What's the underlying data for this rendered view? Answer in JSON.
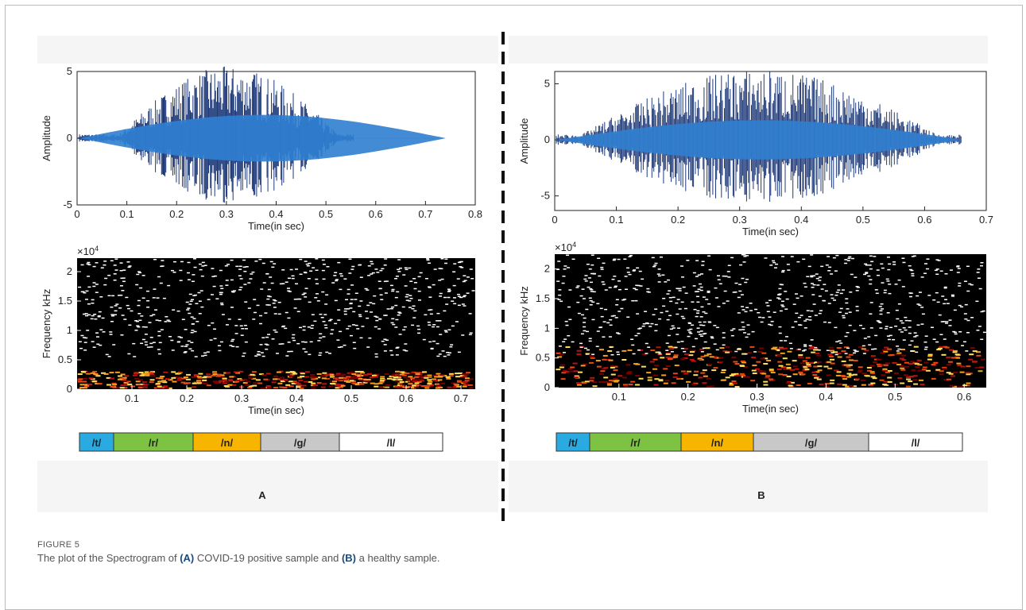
{
  "panels": [
    {
      "label": "A",
      "waveform": {
        "xlabel": "Time(in sec)",
        "ylabel": "Amplitude",
        "xlim": [
          0,
          0.8
        ],
        "xticks": [
          0,
          0.1,
          0.2,
          0.3,
          0.4,
          0.5,
          0.6,
          0.7,
          0.8
        ],
        "ylim": [
          -5,
          5
        ],
        "yticks": [
          -5,
          0,
          5
        ]
      },
      "spectrogram": {
        "xlabel": "Time(in sec)",
        "ylabel": "Frequency kHz",
        "multiplier": "×10",
        "exponent": "4",
        "xlim": [
          0,
          0.726
        ],
        "xticks": [
          0.1,
          0.2,
          0.3,
          0.4,
          0.5,
          0.6,
          0.7
        ],
        "ylim": [
          0,
          2.23
        ],
        "yticks": [
          0,
          0.5,
          1,
          1.5,
          2
        ]
      },
      "phonemes": [
        {
          "label": "/t/",
          "color": "#29abe2"
        },
        {
          "label": "/r/",
          "color": "#7dc242"
        },
        {
          "label": "/n/",
          "color": "#f7b500"
        },
        {
          "label": "/g/",
          "color": "#c8c8c8"
        },
        {
          "label": "/l/",
          "color": "#ffffff"
        }
      ]
    },
    {
      "label": "B",
      "waveform": {
        "xlabel": "Time(in sec)",
        "ylabel": "Amplitude",
        "xlim": [
          0,
          0.7
        ],
        "xticks": [
          0,
          0.1,
          0.2,
          0.3,
          0.4,
          0.5,
          0.6,
          0.7
        ],
        "ylim": [
          -6.3,
          6.1
        ],
        "yticks": [
          -5,
          0,
          5
        ]
      },
      "spectrogram": {
        "xlabel": "Time(in sec)",
        "ylabel": "Frequency kHz",
        "multiplier": "×10",
        "exponent": "4",
        "xlim": [
          0.007,
          0.632
        ],
        "xticks": [
          0.1,
          0.2,
          0.3,
          0.4,
          0.5,
          0.6
        ],
        "ylim": [
          0,
          2.25
        ],
        "yticks": [
          0,
          0.5,
          1,
          1.5,
          2
        ]
      },
      "phonemes": [
        {
          "label": "/t/",
          "color": "#29abe2"
        },
        {
          "label": "/r/",
          "color": "#7dc242"
        },
        {
          "label": "/n/",
          "color": "#f7b500"
        },
        {
          "label": "/g/",
          "color": "#c8c8c8"
        },
        {
          "label": "/l/",
          "color": "#ffffff"
        }
      ]
    }
  ],
  "caption": {
    "figure": "FIGURE 5",
    "parts": [
      "The plot of the Spectrogram of ",
      "(A)",
      " COVID-19 positive sample and ",
      "(B)",
      " a healthy sample."
    ]
  }
}
